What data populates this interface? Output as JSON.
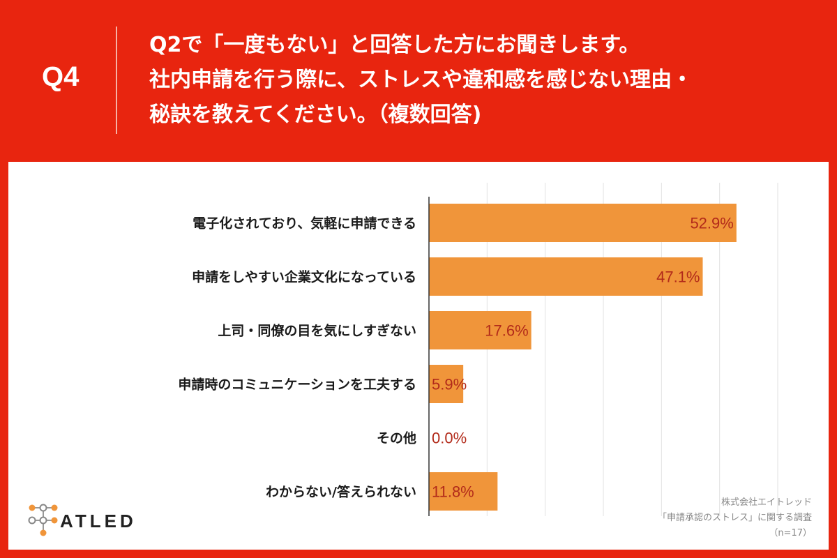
{
  "question": {
    "number": "Q4",
    "lines": [
      "Q2で「一度もない」と回答した方にお聞きします。",
      "社内申請を行う際に、ストレスや違和感を感じない理由・",
      "秘訣を教えてください。（複数回答)"
    ]
  },
  "chart_data": {
    "type": "bar",
    "orientation": "horizontal",
    "categories": [
      "電子化されており、気軽に申請できる",
      "申請をしやすい企業文化になっている",
      "上司・同僚の目を気にしすぎない",
      "申請時のコミュニケーションを工夫する",
      "その他",
      "わからない/答えられない"
    ],
    "values": [
      52.9,
      47.1,
      17.6,
      5.9,
      0.0,
      11.8
    ],
    "value_labels": [
      "52.9%",
      "47.1%",
      "17.6%",
      "5.9%",
      "0.0%",
      "11.8%"
    ],
    "xlim": [
      0,
      60
    ],
    "grid": true,
    "bar_color": "#f0953a",
    "label_color": "#b22a1a"
  },
  "logo": {
    "text": "ATLED"
  },
  "source": {
    "lines": [
      "株式会社エイトレッド",
      "「申請承認のストレス」に関する調査",
      "（n=17）"
    ]
  },
  "colors": {
    "background": "#e8250f",
    "panel": "#ffffff"
  }
}
